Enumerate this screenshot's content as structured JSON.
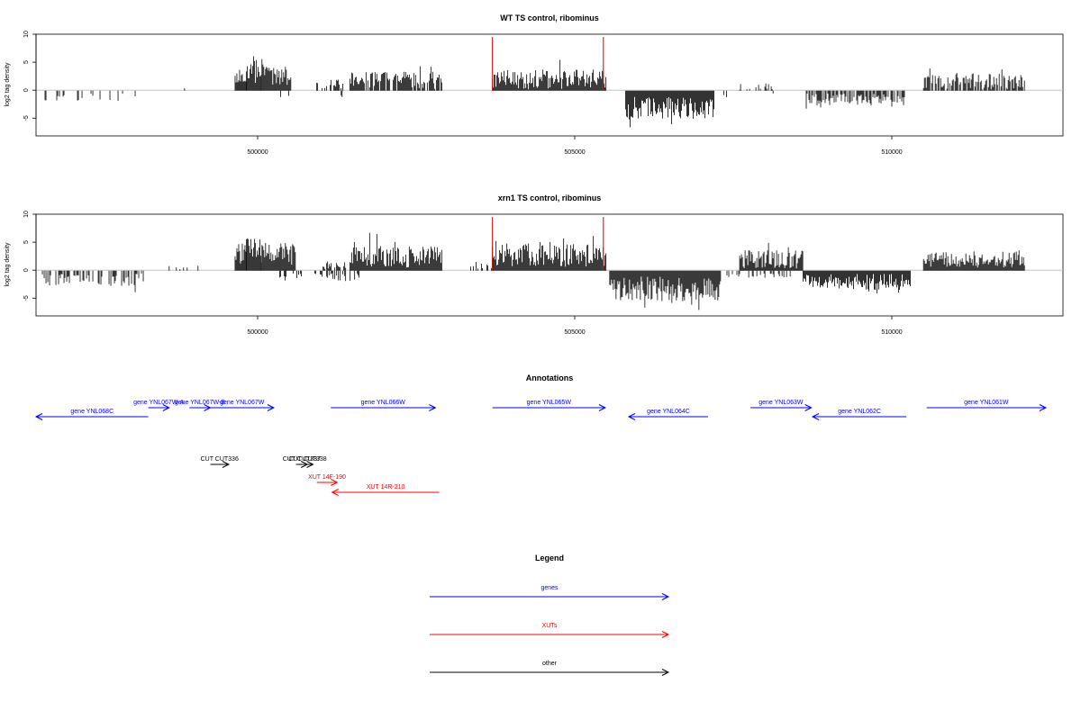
{
  "panels": [
    {
      "title": "WT TS control, ribominus",
      "ylabel": "log2 tag density",
      "yticks": [
        "-5",
        "0",
        "5",
        "10"
      ],
      "xticks": [
        "500000",
        "505000",
        "510000"
      ]
    },
    {
      "title": "xrn1 TS control, ribominus",
      "ylabel": "log2 tag density",
      "yticks": [
        "-5",
        "0",
        "5",
        "10"
      ],
      "xticks": [
        "500000",
        "505000",
        "510000"
      ]
    }
  ],
  "annotations_title": "Annotations",
  "features": [
    {
      "label": "gene YNL068C",
      "category": "gene",
      "strand": "-",
      "start": 496500,
      "end": 498270,
      "row": 1
    },
    {
      "label": "gene YNL067W-A",
      "category": "gene",
      "strand": "+",
      "start": 498270,
      "end": 498600,
      "row": 0
    },
    {
      "label": "gene YNL067W-B",
      "category": "gene",
      "strand": "+",
      "start": 498920,
      "end": 499250,
      "row": 0
    },
    {
      "label": "gene YNL067W",
      "category": "gene",
      "strand": "+",
      "start": 499250,
      "end": 500250,
      "row": 0
    },
    {
      "label": "gene YNL066W",
      "category": "gene",
      "strand": "+",
      "start": 501150,
      "end": 502800,
      "row": 0
    },
    {
      "label": "gene YNL065W",
      "category": "gene",
      "strand": "+",
      "start": 503700,
      "end": 505480,
      "row": 0
    },
    {
      "label": "gene YNL064C",
      "category": "gene",
      "strand": "-",
      "start": 505850,
      "end": 507100,
      "row": 1
    },
    {
      "label": "gene YNL063W",
      "category": "gene",
      "strand": "+",
      "start": 507770,
      "end": 508730,
      "row": 0
    },
    {
      "label": "gene YNL062C",
      "category": "gene",
      "strand": "-",
      "start": 508750,
      "end": 510230,
      "row": 1
    },
    {
      "label": "gene YNL061W",
      "category": "gene",
      "strand": "+",
      "start": 510550,
      "end": 512430,
      "row": 0
    },
    {
      "label": "CUT CUT336",
      "category": "other",
      "strand": "+",
      "start": 499250,
      "end": 499540,
      "row": 2
    },
    {
      "label": "CUT CUT337",
      "category": "other",
      "strand": "+",
      "start": 500600,
      "end": 500780,
      "row": 2
    },
    {
      "label": "CUT CUT338",
      "category": "other",
      "strand": "+",
      "start": 500700,
      "end": 500870,
      "row": 2
    },
    {
      "label": "XUT 14F-190",
      "category": "XUTs",
      "strand": "+",
      "start": 500930,
      "end": 501250,
      "row": 3
    },
    {
      "label": "XUT 14R-210",
      "category": "XUTs",
      "strand": "-",
      "start": 501170,
      "end": 502860,
      "row": 4
    }
  ],
  "legend": {
    "title": "Legend",
    "items": [
      {
        "label": "genes",
        "color": "#0000ff"
      },
      {
        "label": "XUTs",
        "color": "#ff0000"
      },
      {
        "label": "other",
        "color": "#000000"
      }
    ]
  },
  "colors": {
    "gene": "#0000ff",
    "XUTs": "#ff0000",
    "other": "#000000",
    "marker": "#cc0000"
  },
  "chart_data": [
    {
      "type": "bar",
      "title": "WT TS control, ribominus",
      "xlabel": "",
      "ylabel": "log2 tag density",
      "xlim": [
        496500,
        512700
      ],
      "ylim": [
        -8,
        10
      ],
      "xticks": [
        500000,
        505000,
        510000
      ],
      "yticks": [
        -5,
        0,
        5,
        10
      ],
      "grid": false,
      "markers": [
        503700,
        505450
      ],
      "segments": [
        {
          "start": 496600,
          "end": 498200,
          "sign": -1,
          "mean": 1.3,
          "amp": 1.6,
          "density": 0.15
        },
        {
          "start": 498800,
          "end": 498850,
          "sign": 1,
          "mean": 0.7,
          "amp": 0.6,
          "density": 0.5
        },
        {
          "start": 499640,
          "end": 499820,
          "sign": 1,
          "mean": 2.5,
          "amp": 2.2,
          "density": 1.0
        },
        {
          "start": 499820,
          "end": 500050,
          "sign": 1,
          "mean": 3.5,
          "amp": 4.0,
          "density": 1.0
        },
        {
          "start": 500050,
          "end": 500520,
          "sign": 1,
          "mean": 2.6,
          "amp": 3.0,
          "density": 1.0
        },
        {
          "start": 500300,
          "end": 500520,
          "sign": -1,
          "mean": 0.8,
          "amp": 1.0,
          "density": 0.1
        },
        {
          "start": 500900,
          "end": 501350,
          "sign": 1,
          "mean": 1.2,
          "amp": 1.4,
          "density": 0.45
        },
        {
          "start": 501300,
          "end": 501350,
          "sign": -1,
          "mean": 1.2,
          "amp": 0.8,
          "density": 0.4
        },
        {
          "start": 501450,
          "end": 502900,
          "sign": 1,
          "mean": 1.8,
          "amp": 2.8,
          "density": 0.85
        },
        {
          "start": 501900,
          "end": 502400,
          "sign": -1,
          "mean": 0.6,
          "amp": 0.6,
          "density": 0.05
        },
        {
          "start": 503700,
          "end": 505500,
          "sign": 1,
          "mean": 2.0,
          "amp": 3.2,
          "density": 1.0
        },
        {
          "start": 505800,
          "end": 507200,
          "sign": -1,
          "mean": 3.0,
          "amp": 3.5,
          "density": 1.0
        },
        {
          "start": 507350,
          "end": 507400,
          "sign": -1,
          "mean": 1.0,
          "amp": 0.5,
          "density": 0.5
        },
        {
          "start": 507600,
          "end": 508200,
          "sign": 1,
          "mean": 0.8,
          "amp": 1.6,
          "density": 0.3
        },
        {
          "start": 507800,
          "end": 508150,
          "sign": -1,
          "mean": 0.8,
          "amp": 0.8,
          "density": 0.15
        },
        {
          "start": 508650,
          "end": 510200,
          "sign": -1,
          "mean": 1.6,
          "amp": 2.0,
          "density": 0.7
        },
        {
          "start": 510500,
          "end": 512100,
          "sign": 1,
          "mean": 1.6,
          "amp": 2.8,
          "density": 0.8
        }
      ]
    },
    {
      "type": "bar",
      "title": "xrn1 TS control, ribominus",
      "xlabel": "",
      "ylabel": "log2 tag density",
      "xlim": [
        496500,
        512700
      ],
      "ylim": [
        -8,
        10
      ],
      "xticks": [
        500000,
        505000,
        510000
      ],
      "yticks": [
        -5,
        0,
        5,
        10
      ],
      "grid": false,
      "markers": [
        503700,
        505450
      ],
      "segments": [
        {
          "start": 496600,
          "end": 498200,
          "sign": -1,
          "mean": 1.6,
          "amp": 2.0,
          "density": 0.5
        },
        {
          "start": 498600,
          "end": 499100,
          "sign": 1,
          "mean": 0.8,
          "amp": 1.2,
          "density": 0.15
        },
        {
          "start": 499640,
          "end": 499820,
          "sign": 1,
          "mean": 3.0,
          "amp": 3.5,
          "density": 1.0
        },
        {
          "start": 499820,
          "end": 500050,
          "sign": 1,
          "mean": 4.0,
          "amp": 4.5,
          "density": 1.0
        },
        {
          "start": 500050,
          "end": 500600,
          "sign": 1,
          "mean": 3.0,
          "amp": 3.5,
          "density": 1.0
        },
        {
          "start": 500300,
          "end": 501000,
          "sign": -1,
          "mean": 0.8,
          "amp": 1.0,
          "density": 0.25
        },
        {
          "start": 501000,
          "end": 501400,
          "sign": 1,
          "mean": 0.9,
          "amp": 1.2,
          "density": 0.4
        },
        {
          "start": 501000,
          "end": 501600,
          "sign": -1,
          "mean": 1.0,
          "amp": 1.4,
          "density": 0.4
        },
        {
          "start": 501450,
          "end": 502900,
          "sign": 1,
          "mean": 2.5,
          "amp": 3.5,
          "density": 1.0
        },
        {
          "start": 503200,
          "end": 503700,
          "sign": 1,
          "mean": 1.0,
          "amp": 1.2,
          "density": 0.4
        },
        {
          "start": 503700,
          "end": 505500,
          "sign": 1,
          "mean": 2.8,
          "amp": 3.8,
          "density": 1.0
        },
        {
          "start": 505550,
          "end": 507300,
          "sign": -1,
          "mean": 3.2,
          "amp": 4.0,
          "density": 1.0
        },
        {
          "start": 507300,
          "end": 507600,
          "sign": -1,
          "mean": 0.8,
          "amp": 0.6,
          "density": 0.4
        },
        {
          "start": 507600,
          "end": 508600,
          "sign": 1,
          "mean": 2.0,
          "amp": 3.0,
          "density": 1.0
        },
        {
          "start": 507700,
          "end": 508500,
          "sign": -1,
          "mean": 0.8,
          "amp": 0.8,
          "density": 0.3
        },
        {
          "start": 508600,
          "end": 510300,
          "sign": -1,
          "mean": 2.0,
          "amp": 2.6,
          "density": 1.0
        },
        {
          "start": 510500,
          "end": 512100,
          "sign": 1,
          "mean": 2.0,
          "amp": 2.6,
          "density": 1.0
        }
      ]
    }
  ]
}
